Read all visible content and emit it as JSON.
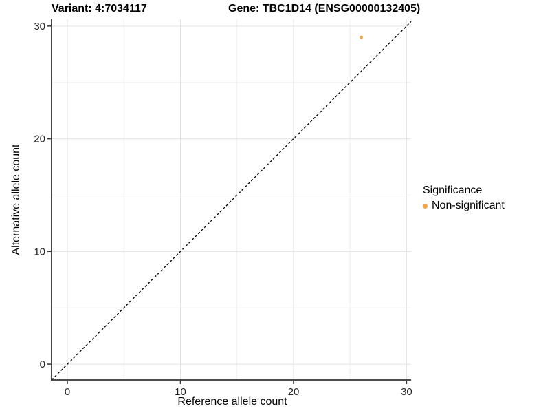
{
  "chart_data": {
    "type": "scatter",
    "title_left": "Variant: 4:7034117",
    "title_right": "Gene: TBC1D14 (ENSG00000132405)",
    "xlabel": "Reference allele count",
    "ylabel": "Alternative allele count",
    "xlim": [
      -1.4,
      30.4
    ],
    "ylim": [
      -1.4,
      30.6
    ],
    "x_ticks": [
      0,
      10,
      20,
      30
    ],
    "y_ticks": [
      0,
      10,
      20,
      30
    ],
    "x_minor_ticks": [
      5,
      15,
      25
    ],
    "y_minor_ticks": [
      5,
      15,
      25
    ],
    "grid": "major+minor",
    "identity_line": {
      "slope": 1,
      "intercept": 0,
      "style": "dashed",
      "color": "#000000"
    },
    "points": [
      {
        "x": 26,
        "y": 29,
        "significance": "Non-significant"
      }
    ],
    "point_radius_px": 2.3,
    "legend": {
      "title": "Significance",
      "position": "right",
      "items": [
        {
          "label": "Non-significant",
          "color": "#FAA43A"
        }
      ]
    },
    "theme": {
      "background": "#FFFFFF",
      "grid_major": "#E3E3E3",
      "grid_minor": "#F0F0F0",
      "axis_line": "#333333",
      "tick_mark": "#333333",
      "tick_label_color": "#262626",
      "title_color": "#000000"
    }
  }
}
